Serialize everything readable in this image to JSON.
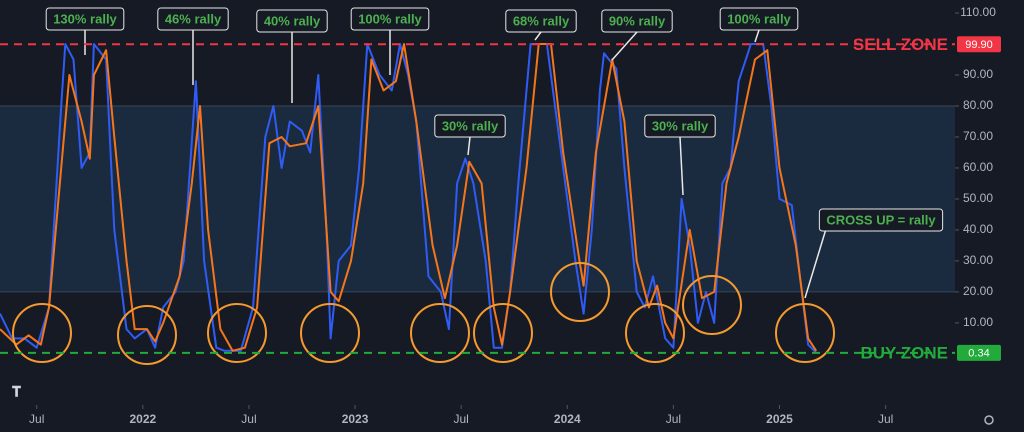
{
  "chart_data": {
    "type": "line",
    "xlim": [
      0,
      234
    ],
    "ylim": [
      -16.5,
      114.2
    ],
    "xticks": [
      {
        "value": 9,
        "label": "Jul"
      },
      {
        "value": 35,
        "label": "2022"
      },
      {
        "value": 61,
        "label": "Jul"
      },
      {
        "value": 87,
        "label": "2023"
      },
      {
        "value": 113,
        "label": "Jul"
      },
      {
        "value": 139,
        "label": "2024"
      },
      {
        "value": 165,
        "label": "Jul"
      },
      {
        "value": 191,
        "label": "2025"
      },
      {
        "value": 217,
        "label": "Jul"
      }
    ],
    "yticks": [
      {
        "value": 110,
        "label": "110.00"
      },
      {
        "value": 90,
        "label": "90.00"
      },
      {
        "value": 80,
        "label": "80.00"
      },
      {
        "value": 70,
        "label": "70.00"
      },
      {
        "value": 60,
        "label": "60.00"
      },
      {
        "value": 50,
        "label": "50.00"
      },
      {
        "value": 40,
        "label": "40.00"
      },
      {
        "value": 30,
        "label": "30.00"
      },
      {
        "value": 20,
        "label": "20.00"
      },
      {
        "value": 10,
        "label": "10.00"
      }
    ],
    "band": [
      20,
      80
    ],
    "series": [
      {
        "color": "#2f5cf5",
        "x": [
          0,
          3,
          6,
          9,
          12,
          15,
          16,
          18,
          20,
          22,
          23,
          26,
          28,
          31,
          33,
          36,
          38,
          40,
          43,
          45,
          48,
          50,
          53,
          55,
          59,
          62,
          65,
          67,
          69,
          71,
          74,
          76,
          78,
          80,
          81,
          83,
          86,
          88,
          90,
          93,
          96,
          98,
          100,
          102,
          105,
          108,
          110,
          112,
          114,
          116,
          119,
          121,
          123,
          125,
          127,
          130,
          134,
          136,
          138,
          141,
          143,
          145,
          147,
          148,
          151,
          153,
          156,
          158,
          160,
          163,
          165,
          167,
          169,
          171,
          173,
          175,
          177,
          179,
          181,
          184,
          187,
          189,
          191,
          194,
          196,
          198,
          200
        ],
        "values": [
          13,
          5,
          5,
          2,
          15,
          80,
          100,
          95,
          60,
          65,
          100,
          95,
          40,
          8,
          5,
          8,
          2,
          15,
          20,
          30,
          88,
          30,
          2,
          1,
          1,
          15,
          70,
          80,
          60,
          75,
          72,
          65,
          90,
          40,
          5,
          30,
          35,
          60,
          100,
          90,
          85,
          100,
          90,
          75,
          25,
          20,
          8,
          55,
          63,
          55,
          30,
          2,
          2,
          20,
          55,
          100,
          100,
          80,
          60,
          30,
          13,
          40,
          85,
          97,
          92,
          60,
          20,
          15,
          25,
          5,
          2,
          50,
          35,
          10,
          20,
          10,
          55,
          60,
          88,
          100,
          100,
          80,
          50,
          48,
          25,
          3,
          0.34
        ]
      },
      {
        "color": "#f5761a",
        "x": [
          0,
          4,
          7,
          10,
          12,
          15,
          17,
          20,
          22,
          23,
          26,
          28,
          31,
          33,
          36,
          38,
          40,
          44,
          47,
          49,
          51,
          54,
          57,
          60,
          63,
          66,
          69,
          71,
          75,
          78,
          81,
          83,
          86,
          89,
          91,
          94,
          97,
          99,
          102,
          106,
          109,
          112,
          115,
          118,
          121,
          123,
          125,
          129,
          132,
          135,
          138,
          142,
          143,
          146,
          150,
          153,
          156,
          159,
          161,
          163,
          165,
          169,
          172,
          175,
          178,
          181,
          185,
          188,
          191,
          195,
          198,
          200
        ],
        "values": [
          8,
          3,
          6,
          3,
          15,
          60,
          90,
          75,
          63,
          90,
          98,
          70,
          30,
          8,
          8,
          4,
          10,
          25,
          55,
          80,
          40,
          8,
          1,
          2,
          15,
          68,
          70,
          67,
          68,
          80,
          20,
          17,
          30,
          55,
          95,
          85,
          88,
          100,
          75,
          35,
          18,
          35,
          62,
          55,
          15,
          3,
          20,
          60,
          100,
          100,
          65,
          30,
          22,
          65,
          95,
          75,
          30,
          15,
          22,
          10,
          5,
          40,
          18,
          20,
          55,
          70,
          95,
          98,
          60,
          35,
          5,
          1
        ]
      }
    ],
    "levels": [
      {
        "name": "SELL ZONE",
        "value": 99.9,
        "label": "99.90",
        "color": "#f23645"
      },
      {
        "name": "BUY ZONE",
        "value": 0.34,
        "label": "0.34",
        "color": "#22ab3b"
      }
    ],
    "annotations": [
      "130% rally",
      "46% rally",
      "40% rally",
      "100% rally",
      "30% rally",
      "68% rally",
      "90% rally",
      "30% rally",
      "100% rally",
      "CROSS UP = rally"
    ]
  }
}
